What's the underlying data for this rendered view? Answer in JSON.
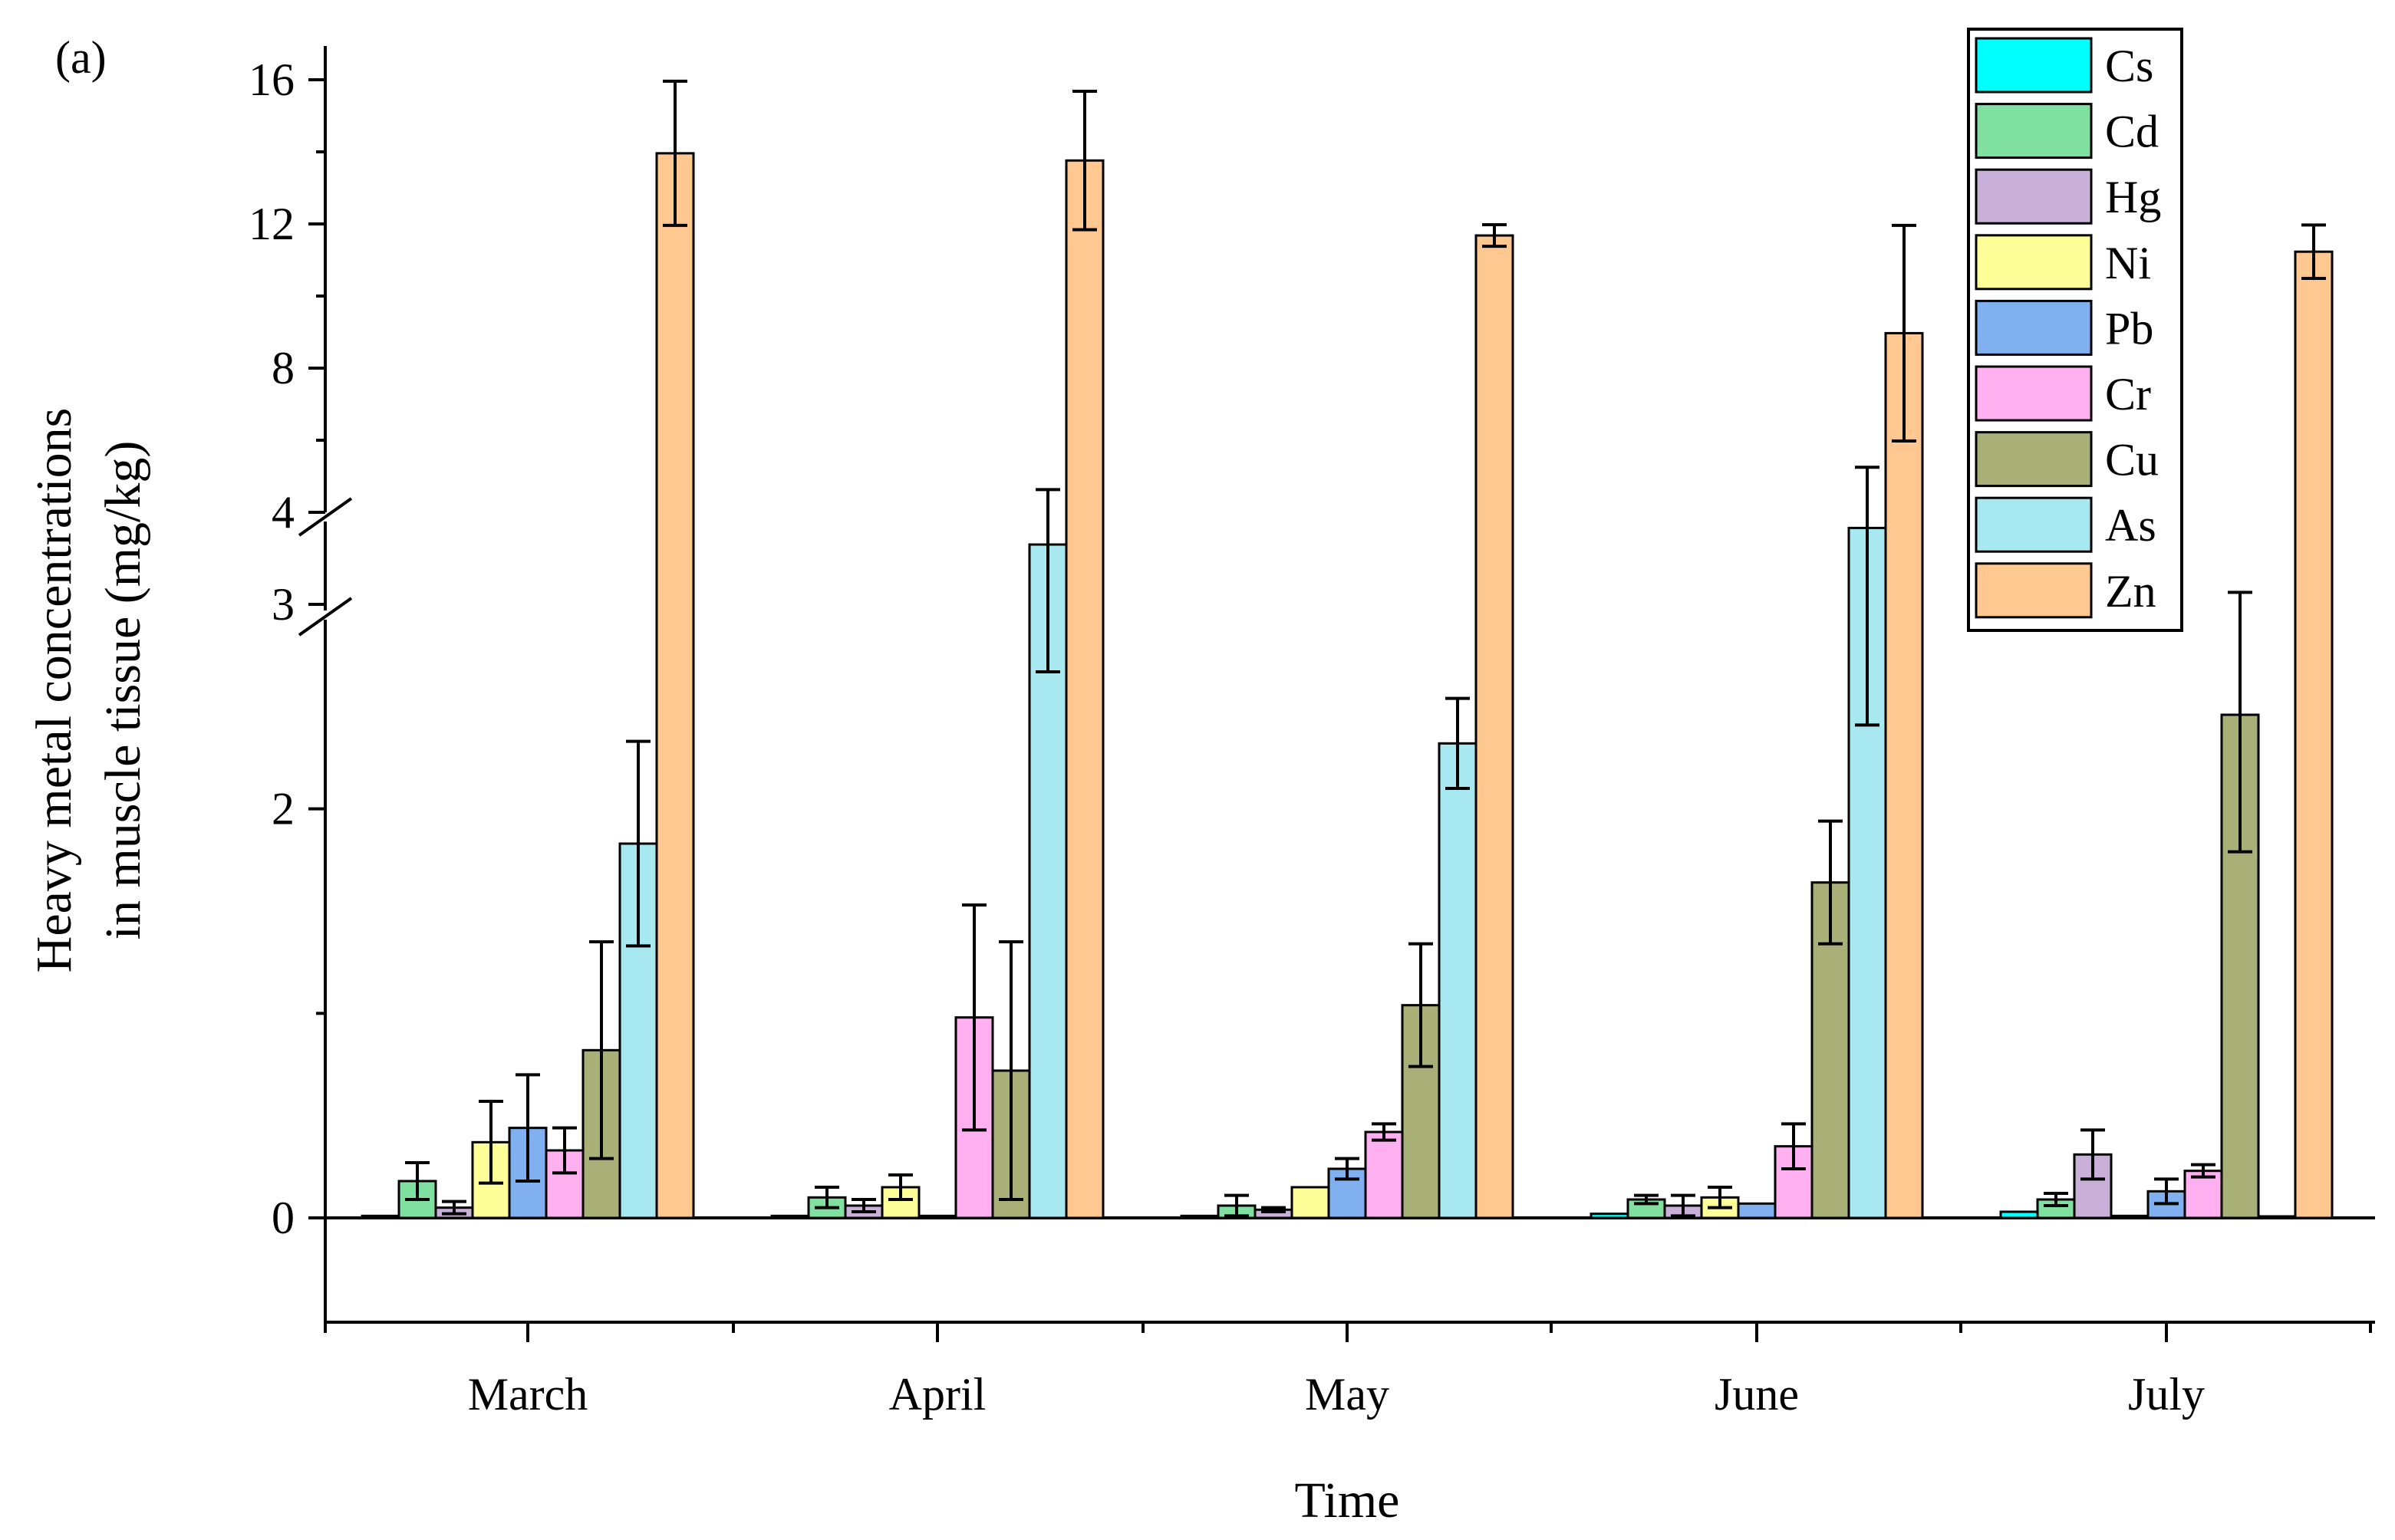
{
  "chart_data": {
    "type": "bar",
    "panel_label": "(a)",
    "xlabel": "Time",
    "ylabel_line1": "Heavy metal concentrations",
    "ylabel_line2": "in muscle tissue (mg/kg)",
    "categories": [
      "March",
      "April",
      "May",
      "June",
      "July"
    ],
    "y_axis": {
      "breaks": [
        {
          "from": 0,
          "to": 3,
          "ticks": [
            0,
            2
          ],
          "minor_ticks": [
            1,
            3
          ]
        },
        {
          "from": 3,
          "to": 4,
          "ticks": [
            3,
            4
          ]
        },
        {
          "from": 4,
          "to": 16,
          "ticks": [
            4,
            8,
            12,
            16
          ],
          "minor_ticks": [
            6,
            10,
            14
          ]
        }
      ],
      "tick_labels": [
        "0",
        "2",
        "3",
        "4",
        "8",
        "12",
        "16"
      ],
      "ylim": [
        -0.5,
        16
      ]
    },
    "legend_position": "top-right",
    "series": [
      {
        "name": "Cs",
        "color": "#00ffff",
        "values": [
          0.01,
          0.01,
          0.01,
          0.02,
          0.03
        ],
        "errors": [
          0,
          0,
          0,
          0,
          0
        ]
      },
      {
        "name": "Cd",
        "color": "#80e0a0",
        "values": [
          0.18,
          0.1,
          0.06,
          0.09,
          0.09
        ],
        "errors": [
          0.09,
          0.05,
          0.05,
          0.02,
          0.03
        ]
      },
      {
        "name": "Hg",
        "color": "#c8b0d8",
        "values": [
          0.05,
          0.06,
          0.04,
          0.06,
          0.31
        ],
        "errors": [
          0.03,
          0.03,
          0.01,
          0.05,
          0.12
        ]
      },
      {
        "name": "Ni",
        "color": "#ffff99",
        "values": [
          0.37,
          0.15,
          0.15,
          0.1,
          0.01
        ],
        "errors": [
          0.2,
          0.06,
          0,
          0.05,
          0
        ]
      },
      {
        "name": "Pb",
        "color": "#80b0f0",
        "values": [
          0.44,
          0.01,
          0.24,
          0.07,
          0.13
        ],
        "errors": [
          0.26,
          0,
          0.05,
          0,
          0.06
        ]
      },
      {
        "name": "Cr",
        "color": "#ffb0f0",
        "values": [
          0.33,
          0.98,
          0.42,
          0.35,
          0.23
        ],
        "errors": [
          0.11,
          0.55,
          0.04,
          0.11,
          0.03
        ]
      },
      {
        "name": "Cu",
        "color": "#a8b078",
        "values": [
          0.82,
          0.72,
          1.04,
          1.64,
          2.46
        ],
        "errors": [
          0.53,
          0.63,
          0.3,
          0.3,
          0.67
        ]
      },
      {
        "name": "As",
        "color": "#a8e8f0",
        "values": [
          1.83,
          3.65,
          2.32,
          3.83,
          0
        ],
        "errors": [
          0.5,
          0.98,
          0.22,
          1.42,
          0
        ]
      },
      {
        "name": "Zn",
        "color": "#ffc890",
        "values": [
          13.96,
          13.76,
          11.68,
          8.97,
          11.23
        ],
        "errors": [
          2.0,
          1.92,
          0.3,
          2.99,
          0.74
        ]
      }
    ]
  }
}
